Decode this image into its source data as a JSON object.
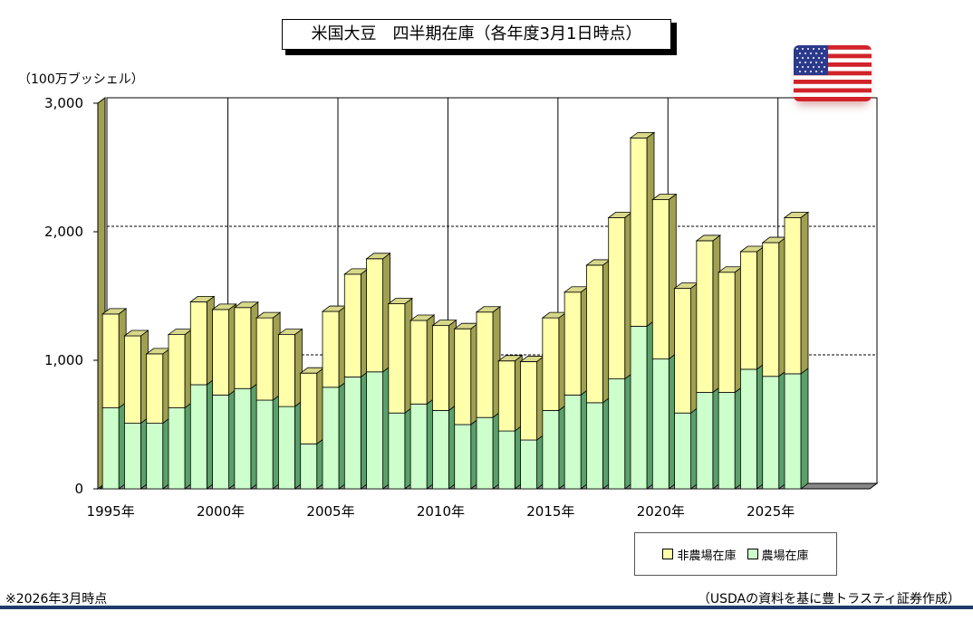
{
  "title": "米国大豆　四半期在庫（各年度3月1日時点）",
  "unit_label": "（100万ブッシェル）",
  "note": "※2026年3月時点",
  "source": "（USDAの資料を基に豊トラスティ証券作成）",
  "colors": {
    "non_farm": "#ffffaa",
    "farm": "#ccffcc",
    "frame_top": "#d8d88a",
    "frame_side": "#a0a050"
  },
  "chart_data": {
    "type": "bar",
    "stacked": true,
    "x": [
      1995,
      1996,
      1997,
      1998,
      1999,
      2000,
      2001,
      2002,
      2003,
      2004,
      2005,
      2006,
      2007,
      2008,
      2009,
      2010,
      2011,
      2012,
      2013,
      2014,
      2015,
      2016,
      2017,
      2018,
      2019,
      2020,
      2021,
      2022,
      2023,
      2024,
      2025,
      2026
    ],
    "x_tick_labels": [
      "1995年",
      "2000年",
      "2005年",
      "2010年",
      "2015年",
      "2020年",
      "2025年"
    ],
    "x_tick_years": [
      1995,
      2000,
      2005,
      2010,
      2015,
      2020,
      2025
    ],
    "y_ticks": [
      "0",
      "1,000",
      "2,000",
      "3,000"
    ],
    "ylim": [
      0,
      3000
    ],
    "grid": "dashed horizontal at 1,000 and 2,000; solid vertical every 5 years",
    "legend_position": "bottom-right",
    "series": [
      {
        "name": "農場在庫",
        "color": "#ccffcc",
        "values": [
          630,
          510,
          510,
          630,
          810,
          730,
          780,
          690,
          640,
          350,
          790,
          870,
          910,
          590,
          660,
          610,
          500,
          555,
          450,
          380,
          610,
          730,
          670,
          855,
          1265,
          1010,
          590,
          750,
          750,
          930,
          875,
          895
        ]
      },
      {
        "name": "非農場在庫",
        "color": "#ffffaa",
        "values": [
          730,
          680,
          540,
          570,
          645,
          665,
          630,
          640,
          560,
          550,
          590,
          800,
          880,
          850,
          650,
          660,
          745,
          820,
          545,
          610,
          720,
          800,
          1070,
          1255,
          1465,
          1240,
          970,
          1180,
          935,
          915,
          1040,
          1215
        ]
      }
    ]
  }
}
